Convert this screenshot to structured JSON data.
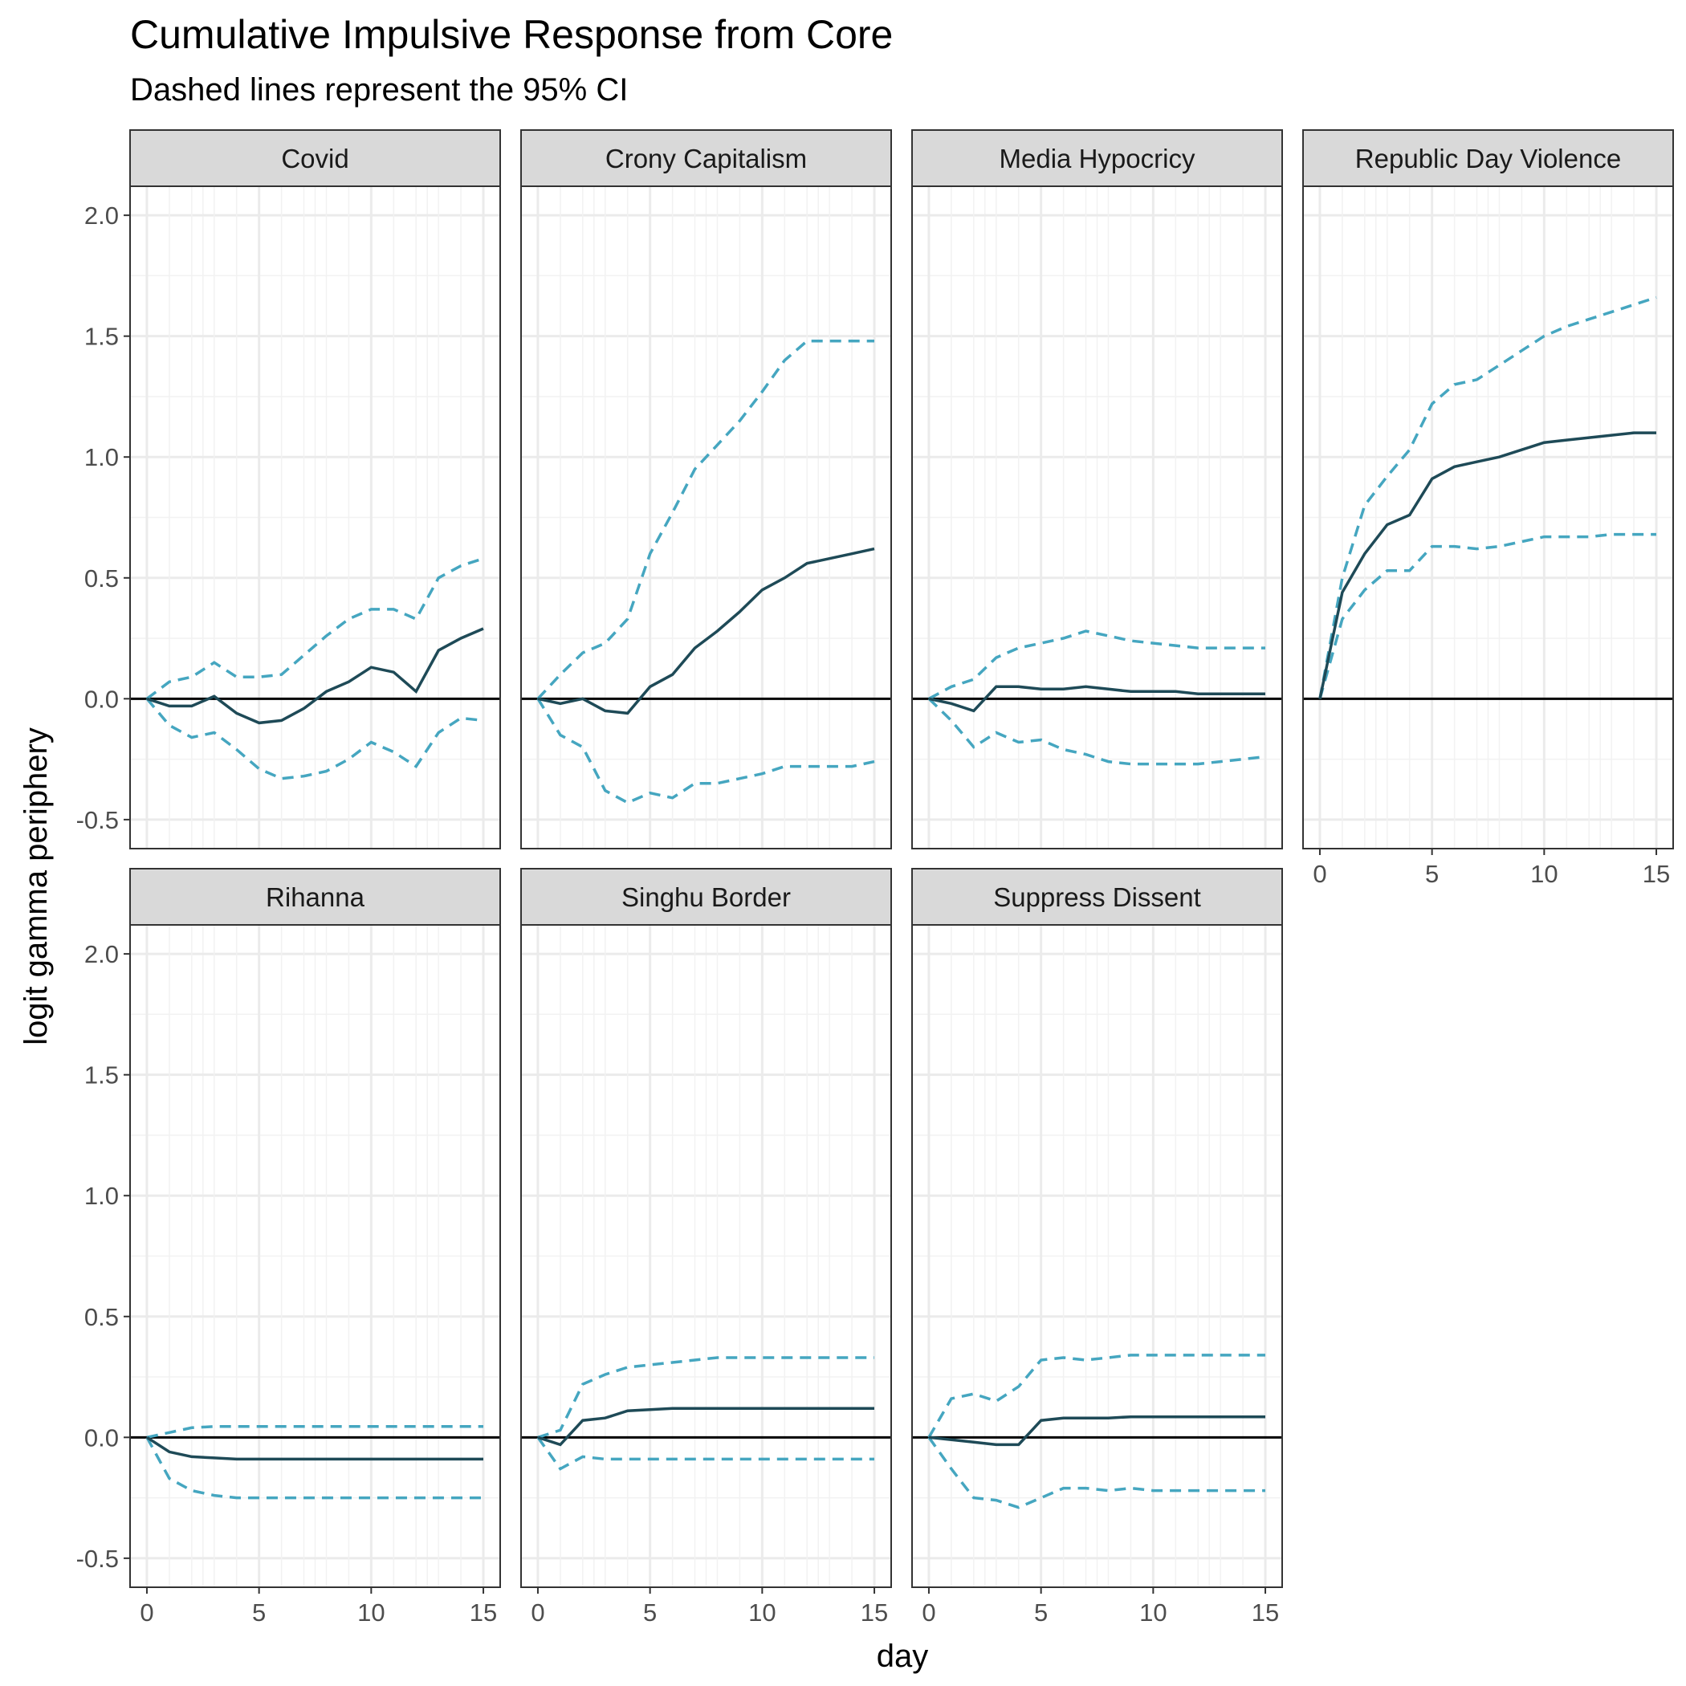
{
  "chart_data": {
    "type": "line",
    "title": "Cumulative Impulsive Response from Core",
    "subtitle": "Dashed lines represent the 95% CI",
    "xlabel": "day",
    "ylabel": "logit gamma periphery",
    "xlim": [
      -0.75,
      15.75
    ],
    "ylim": [
      -0.62,
      2.12
    ],
    "x_ticks": [
      0,
      5,
      10,
      15
    ],
    "x_tick_labels": [
      "0",
      "5",
      "10",
      "15"
    ],
    "y_ticks": [
      -0.5,
      0.0,
      0.5,
      1.0,
      1.5,
      2.0
    ],
    "y_tick_labels": [
      "-0.5",
      "0.0",
      "0.5",
      "1.0",
      "1.5",
      "2.0"
    ],
    "reference_line": 0,
    "grid": true,
    "layout": "facet 2 rows x 4 columns",
    "colors": {
      "estimate": "#1e4a57",
      "ci": "#45a6c0",
      "zero_line": "#000000",
      "strip": "#d9d9d9"
    },
    "x": [
      0,
      1,
      2,
      3,
      4,
      5,
      6,
      7,
      8,
      9,
      10,
      11,
      12,
      13,
      14,
      15
    ],
    "panels": [
      {
        "name": "Covid",
        "estimate": [
          0,
          -0.03,
          -0.03,
          0.01,
          -0.06,
          -0.1,
          -0.09,
          -0.04,
          0.03,
          0.07,
          0.13,
          0.11,
          0.03,
          0.2,
          0.25,
          0.29
        ],
        "upper": [
          0,
          0.07,
          0.09,
          0.15,
          0.09,
          0.09,
          0.1,
          0.18,
          0.26,
          0.33,
          0.37,
          0.37,
          0.33,
          0.5,
          0.55,
          0.58
        ],
        "lower": [
          0,
          -0.11,
          -0.16,
          -0.14,
          -0.21,
          -0.29,
          -0.33,
          -0.32,
          -0.3,
          -0.25,
          -0.18,
          -0.22,
          -0.28,
          -0.14,
          -0.08,
          -0.09
        ]
      },
      {
        "name": "Crony Capitalism",
        "estimate": [
          0,
          -0.02,
          0.0,
          -0.05,
          -0.06,
          0.05,
          0.1,
          0.21,
          0.28,
          0.36,
          0.45,
          0.5,
          0.56,
          0.58,
          0.6,
          0.62
        ],
        "upper": [
          0,
          0.1,
          0.19,
          0.23,
          0.33,
          0.6,
          0.77,
          0.95,
          1.05,
          1.15,
          1.27,
          1.4,
          1.48,
          1.48,
          1.48,
          1.48
        ],
        "lower": [
          0,
          -0.15,
          -0.2,
          -0.38,
          -0.43,
          -0.39,
          -0.41,
          -0.35,
          -0.35,
          -0.33,
          -0.31,
          -0.28,
          -0.28,
          -0.28,
          -0.28,
          -0.26
        ]
      },
      {
        "name": "Media Hypocricy",
        "estimate": [
          0,
          -0.02,
          -0.05,
          0.05,
          0.05,
          0.04,
          0.04,
          0.05,
          0.04,
          0.03,
          0.03,
          0.03,
          0.02,
          0.02,
          0.02,
          0.02
        ],
        "upper": [
          0,
          0.05,
          0.08,
          0.17,
          0.21,
          0.23,
          0.25,
          0.28,
          0.26,
          0.24,
          0.23,
          0.22,
          0.21,
          0.21,
          0.21,
          0.21
        ],
        "lower": [
          0,
          -0.09,
          -0.2,
          -0.14,
          -0.18,
          -0.17,
          -0.21,
          -0.23,
          -0.26,
          -0.27,
          -0.27,
          -0.27,
          -0.27,
          -0.26,
          -0.25,
          -0.24
        ]
      },
      {
        "name": "Republic Day Violence",
        "estimate": [
          0,
          0.44,
          0.6,
          0.72,
          0.76,
          0.91,
          0.96,
          0.98,
          1.0,
          1.03,
          1.06,
          1.07,
          1.08,
          1.09,
          1.1,
          1.1
        ],
        "upper": [
          0,
          0.5,
          0.8,
          0.92,
          1.03,
          1.22,
          1.3,
          1.32,
          1.38,
          1.44,
          1.5,
          1.54,
          1.57,
          1.6,
          1.63,
          1.66
        ],
        "lower": [
          0,
          0.33,
          0.45,
          0.53,
          0.53,
          0.63,
          0.63,
          0.62,
          0.63,
          0.65,
          0.67,
          0.67,
          0.67,
          0.68,
          0.68,
          0.68
        ]
      },
      {
        "name": "Rihanna",
        "estimate": [
          0,
          -0.06,
          -0.08,
          -0.085,
          -0.09,
          -0.09,
          -0.09,
          -0.09,
          -0.09,
          -0.09,
          -0.09,
          -0.09,
          -0.09,
          -0.09,
          -0.09,
          -0.09
        ],
        "upper": [
          0,
          0.02,
          0.04,
          0.045,
          0.045,
          0.045,
          0.045,
          0.045,
          0.045,
          0.045,
          0.045,
          0.045,
          0.045,
          0.045,
          0.045,
          0.045
        ],
        "lower": [
          0,
          -0.17,
          -0.22,
          -0.24,
          -0.25,
          -0.25,
          -0.25,
          -0.25,
          -0.25,
          -0.25,
          -0.25,
          -0.25,
          -0.25,
          -0.25,
          -0.25,
          -0.25
        ]
      },
      {
        "name": "Singhu Border",
        "estimate": [
          0,
          -0.03,
          0.07,
          0.08,
          0.11,
          0.115,
          0.12,
          0.12,
          0.12,
          0.12,
          0.12,
          0.12,
          0.12,
          0.12,
          0.12,
          0.12
        ],
        "upper": [
          0,
          0.03,
          0.22,
          0.26,
          0.29,
          0.3,
          0.31,
          0.32,
          0.33,
          0.33,
          0.33,
          0.33,
          0.33,
          0.33,
          0.33,
          0.33
        ],
        "lower": [
          0,
          -0.13,
          -0.08,
          -0.09,
          -0.09,
          -0.09,
          -0.09,
          -0.09,
          -0.09,
          -0.09,
          -0.09,
          -0.09,
          -0.09,
          -0.09,
          -0.09,
          -0.09
        ]
      },
      {
        "name": "Suppress Dissent",
        "estimate": [
          0,
          -0.01,
          -0.02,
          -0.03,
          -0.03,
          0.07,
          0.08,
          0.08,
          0.08,
          0.085,
          0.085,
          0.085,
          0.085,
          0.085,
          0.085,
          0.085
        ],
        "upper": [
          0,
          0.16,
          0.18,
          0.15,
          0.21,
          0.32,
          0.33,
          0.32,
          0.33,
          0.34,
          0.34,
          0.34,
          0.34,
          0.34,
          0.34,
          0.34
        ],
        "lower": [
          0,
          -0.13,
          -0.25,
          -0.26,
          -0.29,
          -0.25,
          -0.21,
          -0.21,
          -0.22,
          -0.21,
          -0.22,
          -0.22,
          -0.22,
          -0.22,
          -0.22,
          -0.22
        ]
      }
    ]
  }
}
